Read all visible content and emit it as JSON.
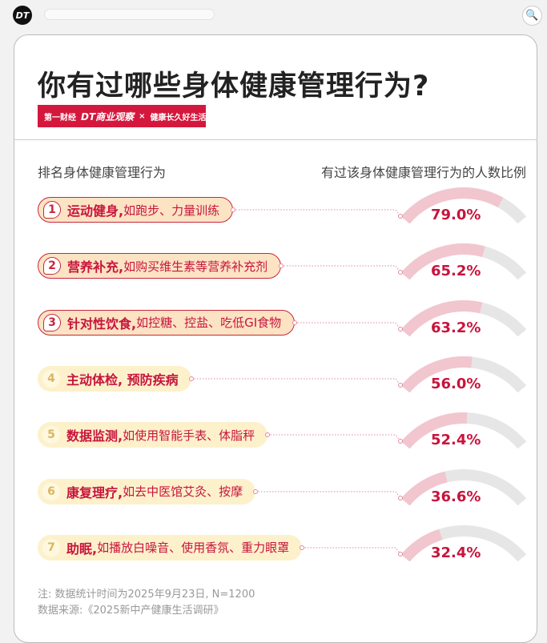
{
  "topbar": {
    "logo": "DT",
    "search_icon": "search-icon"
  },
  "title": "你有过哪些身体健康管理行为?",
  "brand": {
    "a": "第一财经",
    "b": "DT商业观察",
    "x": "×",
    "c": "健康长久好生活"
  },
  "headers": {
    "left": "排名身体健康管理行为",
    "right": "有过该身体健康管理行为的人数比例"
  },
  "colors": {
    "accent": "#c8143c",
    "arc_fill": "#f2c6cf",
    "arc_track": "#e6e6e6"
  },
  "chart_data": {
    "type": "gauge",
    "items": [
      {
        "rank": "1",
        "name": "运动健身,",
        "desc": "如跑步、力量训练",
        "value": 79.0,
        "label": "79.0%"
      },
      {
        "rank": "2",
        "name": "营养补充,",
        "desc": "如购买维生素等营养补充剂",
        "value": 65.2,
        "label": "65.2%"
      },
      {
        "rank": "3",
        "name": "针对性饮食,",
        "desc": "如控糖、控盐、吃低GI食物",
        "value": 63.2,
        "label": "63.2%"
      },
      {
        "rank": "4",
        "name": "主动体检, 预防疾病",
        "desc": "",
        "value": 56.0,
        "label": "56.0%"
      },
      {
        "rank": "5",
        "name": "数据监测,",
        "desc": "如使用智能手表、体脂秤",
        "value": 52.4,
        "label": "52.4%"
      },
      {
        "rank": "6",
        "name": "康复理疗,",
        "desc": "如去中医馆艾灸、按摩",
        "value": 36.6,
        "label": "36.6%"
      },
      {
        "rank": "7",
        "name": "助眠,",
        "desc": "如播放白噪音、使用香氛、重力眼罩",
        "value": 32.4,
        "label": "32.4%"
      }
    ]
  },
  "notes": {
    "note": "注: 数据统计时间为2025年9月23日, N=1200",
    "source": "数据来源:《2025新中产健康生活调研》"
  }
}
